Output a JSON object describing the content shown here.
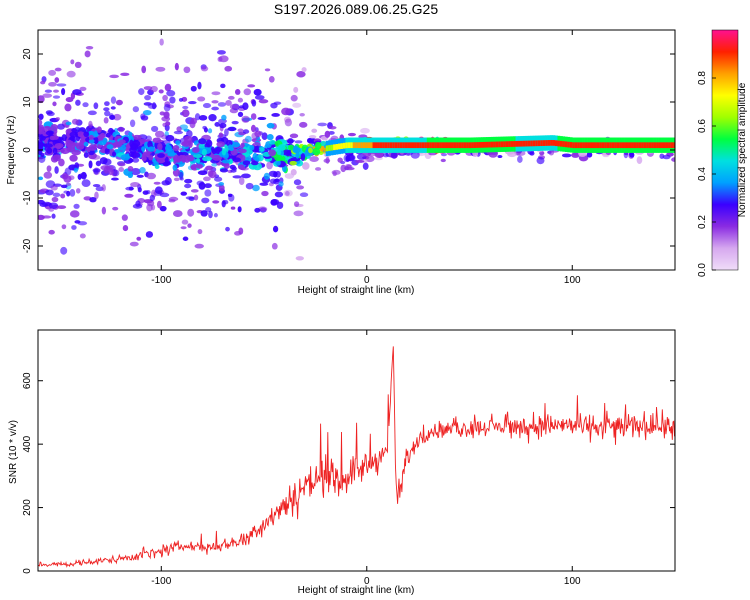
{
  "figure_title": "S197.2026.089.06.25.G25",
  "chart_data": [
    {
      "type": "heatmap",
      "xlabel": "Height of straight line (km)",
      "ylabel": "Frequency (Hz)",
      "xlim": [
        -160,
        150
      ],
      "ylim": [
        -25,
        25
      ],
      "x_ticks": [
        -100,
        0,
        100
      ],
      "y_ticks": [
        -20,
        -10,
        0,
        10,
        20
      ],
      "colorbar": {
        "label": "Normalized spectral amplitude",
        "range": [
          0,
          1
        ],
        "ticks": [
          0.0,
          0.2,
          0.4,
          0.6,
          0.8
        ],
        "tick_labels": [
          "0.0",
          "0.2",
          "0.4",
          "0.6",
          "0.8"
        ],
        "colors": [
          "#f0ddf8",
          "#d6a8ef",
          "#8a2be2",
          "#3a00ff",
          "#00a0ff",
          "#00e0e0",
          "#00ff40",
          "#a0ff00",
          "#ffff00",
          "#ffa000",
          "#ff2000",
          "#ff1090"
        ]
      },
      "ridge": [
        {
          "x": -140,
          "f": 2,
          "a": 0.25
        },
        {
          "x": -120,
          "f": 1,
          "a": 0.3
        },
        {
          "x": -100,
          "f": -1,
          "a": 0.3
        },
        {
          "x": -80,
          "f": -1,
          "a": 0.32
        },
        {
          "x": -60,
          "f": -1,
          "a": 0.35
        },
        {
          "x": -45,
          "f": -1,
          "a": 0.4
        },
        {
          "x": -35,
          "f": -1,
          "a": 0.45
        },
        {
          "x": -25,
          "f": 0,
          "a": 0.6
        },
        {
          "x": -10,
          "f": 1,
          "a": 0.75
        },
        {
          "x": 0,
          "f": 1,
          "a": 0.85
        },
        {
          "x": 10,
          "f": 1,
          "a": 0.9
        },
        {
          "x": 50,
          "f": 1,
          "a": 0.92
        },
        {
          "x": 90,
          "f": 1.5,
          "a": 0.9
        },
        {
          "x": 100,
          "f": 1,
          "a": 0.95
        },
        {
          "x": 150,
          "f": 1,
          "a": 0.95
        }
      ]
    },
    {
      "type": "line",
      "xlabel": "Height of straight line (km)",
      "ylabel": "SNR (10 * v/v)",
      "xlim": [
        -160,
        150
      ],
      "ylim": [
        0,
        760
      ],
      "x_ticks": [
        -100,
        0,
        100
      ],
      "y_ticks": [
        0,
        200,
        400,
        600
      ],
      "color": "#ee2222",
      "x": [
        -160,
        -140,
        -120,
        -100,
        -90,
        -80,
        -70,
        -60,
        -50,
        -45,
        -40,
        -35,
        -30,
        -25,
        -20,
        -15,
        -10,
        -5,
        0,
        5,
        10,
        13,
        14,
        15,
        18,
        20,
        25,
        30,
        40,
        50,
        60,
        70,
        80,
        90,
        100,
        110,
        120,
        130,
        140,
        150
      ],
      "y": [
        20,
        22,
        40,
        60,
        80,
        75,
        80,
        100,
        150,
        180,
        210,
        240,
        270,
        290,
        300,
        280,
        300,
        320,
        330,
        350,
        380,
        720,
        260,
        230,
        300,
        360,
        410,
        440,
        445,
        450,
        455,
        455,
        455,
        460,
        460,
        455,
        455,
        460,
        460,
        460
      ],
      "noise": [
        10,
        10,
        18,
        25,
        28,
        28,
        28,
        35,
        50,
        60,
        70,
        85,
        90,
        95,
        90,
        85,
        80,
        70,
        70,
        70,
        70,
        10,
        80,
        80,
        60,
        45,
        35,
        35,
        35,
        40,
        40,
        45,
        50,
        55,
        55,
        55,
        60,
        60,
        60,
        60
      ]
    }
  ]
}
